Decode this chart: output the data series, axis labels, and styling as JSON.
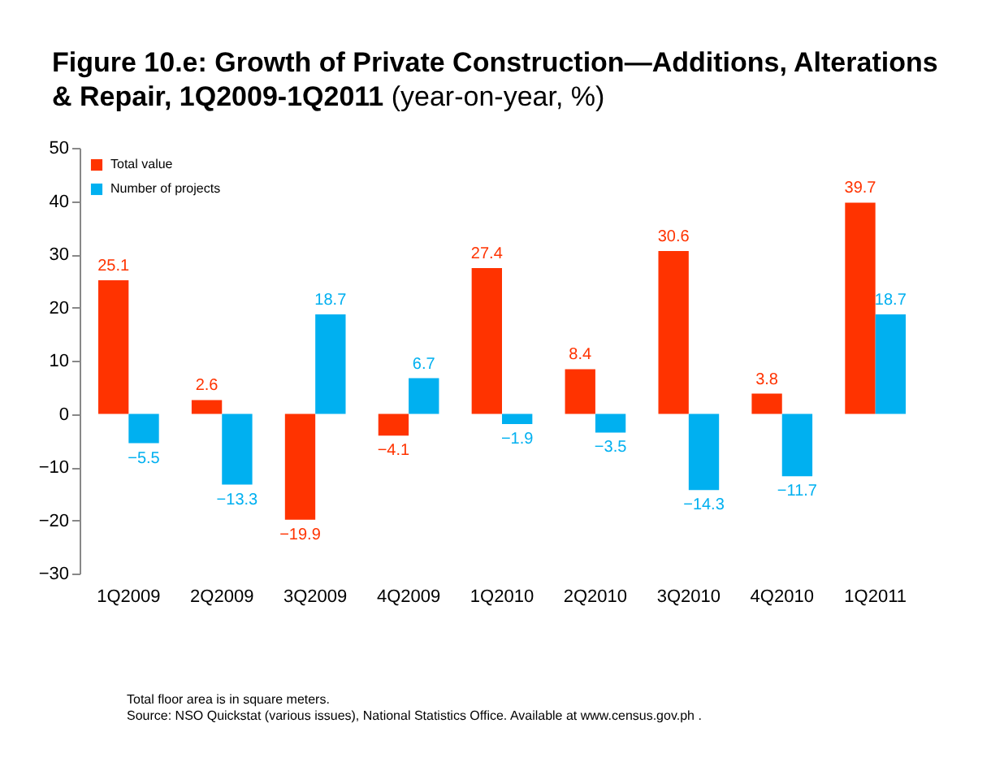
{
  "chart_data": {
    "type": "bar",
    "title": "Figure 10.e: Growth of Private Construction—Additions, Alterations & Repair, 1Q2009-1Q2011",
    "subtitle": "(year-on-year, %)",
    "categories": [
      "1Q2009",
      "2Q2009",
      "3Q2009",
      "4Q2009",
      "1Q2010",
      "2Q2010",
      "3Q2010",
      "4Q2010",
      "1Q2011"
    ],
    "series": [
      {
        "name": "Total value",
        "color": "#ff3300",
        "values": [
          25.1,
          2.6,
          -19.9,
          -4.1,
          27.4,
          8.4,
          30.6,
          3.8,
          39.7
        ]
      },
      {
        "name": "Number of projects",
        "color": "#00b0f0",
        "values": [
          -5.5,
          -13.3,
          18.7,
          6.7,
          -1.9,
          -3.5,
          -14.3,
          -11.7,
          18.7
        ]
      }
    ],
    "ylim": [
      -30,
      50
    ],
    "yticks": [
      -30,
      -20,
      -10,
      0,
      10,
      20,
      30,
      40,
      50
    ],
    "data_labels": true,
    "legend": "top left",
    "grid": false,
    "annotations": [
      "Total floor area is in square meters.",
      "Source: NSO Quickstat (various issues), National Statistics Office. Available at www.census.gov.ph ."
    ]
  }
}
